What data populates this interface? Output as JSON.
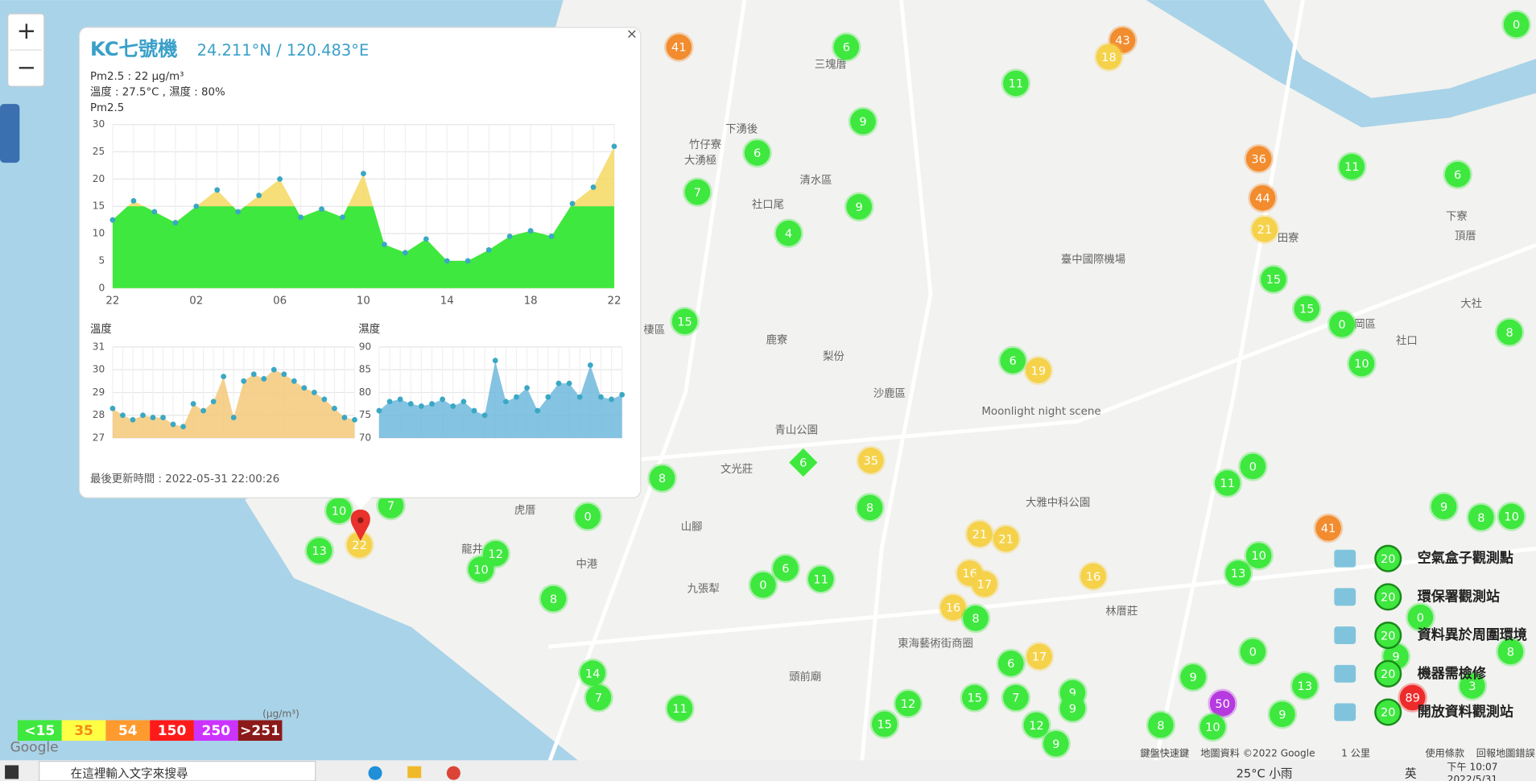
{
  "map": {
    "zoom_in": "+",
    "zoom_out": "−",
    "places": [
      "清水區",
      "沙鹿區",
      "棲區",
      "臺中國際機場",
      "神岡區",
      "龍井",
      "大雅中科公園",
      "Moonlight night scene",
      "鹿寮",
      "社口尾",
      "竹仔寮",
      "大湧極",
      "下湧後",
      "三塊厝",
      "田寮",
      "下寮",
      "頂厝",
      "文光莊",
      "山腳",
      "九張犁",
      "虎厝",
      "中港",
      "林厝莊",
      "大社",
      "社口",
      "頭前廟",
      "東海藝術街商圈",
      "梨份",
      "青山公園"
    ],
    "markers": [
      {
        "value": 41,
        "color": "#f28c2e"
      },
      {
        "value": 6,
        "color": "#3ee83e"
      },
      {
        "value": 43,
        "color": "#f28c2e"
      },
      {
        "value": 18,
        "color": "#f5d24a"
      },
      {
        "value": 11,
        "color": "#3ee83e"
      },
      {
        "value": 9,
        "color": "#3ee83e"
      },
      {
        "value": 6,
        "color": "#3ee83e"
      },
      {
        "value": 7,
        "color": "#3ee83e"
      },
      {
        "value": 9,
        "color": "#3ee83e"
      },
      {
        "value": 4,
        "color": "#3ee83e"
      },
      {
        "value": 36,
        "color": "#f28c2e"
      },
      {
        "value": 44,
        "color": "#f28c2e"
      },
      {
        "value": 21,
        "color": "#f5d24a"
      },
      {
        "value": 11,
        "color": "#3ee83e"
      },
      {
        "value": 6,
        "color": "#3ee83e"
      },
      {
        "value": 0,
        "color": "#3ee83e"
      },
      {
        "value": 15,
        "color": "#3ee83e"
      },
      {
        "value": 15,
        "color": "#3ee83e"
      },
      {
        "value": 0,
        "color": "#3ee83e"
      },
      {
        "value": 10,
        "color": "#3ee83e"
      },
      {
        "value": 8,
        "color": "#3ee83e"
      },
      {
        "value": 15,
        "color": "#3ee83e"
      },
      {
        "value": 6,
        "color": "#3ee83e"
      },
      {
        "value": 19,
        "color": "#f5d24a"
      },
      {
        "value": 35,
        "color": "#f5d24a"
      },
      {
        "value": 8,
        "color": "#3ee83e"
      },
      {
        "value": 0,
        "color": "#3ee83e"
      },
      {
        "value": 11,
        "color": "#3ee83e"
      },
      {
        "value": 41,
        "color": "#f28c2e"
      },
      {
        "value": 9,
        "color": "#3ee83e"
      },
      {
        "value": 8,
        "color": "#3ee83e"
      },
      {
        "value": 10,
        "color": "#3ee83e"
      },
      {
        "value": 10,
        "color": "#3ee83e"
      },
      {
        "value": 7,
        "color": "#3ee83e"
      },
      {
        "value": 13,
        "color": "#3ee83e"
      },
      {
        "value": 22,
        "color": "#f5d24a"
      },
      {
        "value": 0,
        "color": "#3ee83e"
      },
      {
        "value": 12,
        "color": "#3ee83e"
      },
      {
        "value": 10,
        "color": "#3ee83e"
      },
      {
        "value": 8,
        "color": "#3ee83e"
      },
      {
        "value": 8,
        "color": "#3ee83e"
      },
      {
        "value": 21,
        "color": "#f5d24a"
      },
      {
        "value": 21,
        "color": "#f5d24a"
      },
      {
        "value": 6,
        "color": "#3ee83e"
      },
      {
        "value": 11,
        "color": "#3ee83e"
      },
      {
        "value": 0,
        "color": "#3ee83e"
      },
      {
        "value": 16,
        "color": "#f5d24a"
      },
      {
        "value": 17,
        "color": "#f5d24a"
      },
      {
        "value": 16,
        "color": "#f5d24a"
      },
      {
        "value": 10,
        "color": "#3ee83e"
      },
      {
        "value": 13,
        "color": "#3ee83e"
      },
      {
        "value": 16,
        "color": "#f5d24a"
      },
      {
        "value": 8,
        "color": "#3ee83e"
      },
      {
        "value": 0,
        "color": "#3ee83e"
      },
      {
        "value": 0,
        "color": "#3ee83e"
      },
      {
        "value": 8,
        "color": "#3ee83e"
      },
      {
        "value": 17,
        "color": "#f5d24a"
      },
      {
        "value": 6,
        "color": "#3ee83e"
      },
      {
        "value": 14,
        "color": "#3ee83e"
      },
      {
        "value": 7,
        "color": "#3ee83e"
      },
      {
        "value": 11,
        "color": "#3ee83e"
      },
      {
        "value": 12,
        "color": "#3ee83e"
      },
      {
        "value": 15,
        "color": "#3ee83e"
      },
      {
        "value": 15,
        "color": "#3ee83e"
      },
      {
        "value": 7,
        "color": "#3ee83e"
      },
      {
        "value": 12,
        "color": "#3ee83e"
      },
      {
        "value": 9,
        "color": "#3ee83e"
      },
      {
        "value": 9,
        "color": "#3ee83e"
      },
      {
        "value": 9,
        "color": "#3ee83e"
      },
      {
        "value": 9,
        "color": "#3ee83e"
      },
      {
        "value": 50,
        "color": "#b63ae0"
      },
      {
        "value": 8,
        "color": "#3ee83e"
      },
      {
        "value": 10,
        "color": "#3ee83e"
      },
      {
        "value": 9,
        "color": "#3ee83e"
      },
      {
        "value": 13,
        "color": "#3ee83e"
      },
      {
        "value": 89,
        "color": "#ee2a2a"
      },
      {
        "value": 9,
        "color": "#3ee83e"
      },
      {
        "value": 3,
        "color": "#3ee83e"
      },
      {
        "value": 6,
        "color": "#3ee83e",
        "shape": "diamond"
      }
    ],
    "attribution": [
      "鍵盤快速鍵",
      "地圖資料 ©2022 Google",
      "1 公里",
      "使用條款",
      "回報地圖錯誤"
    ],
    "logo": "Google"
  },
  "popup": {
    "title": "KC七號機",
    "coords": "24.211°N / 120.483°E",
    "close": "×",
    "pm_line": "Pm2.5 : 22 μg/m³",
    "env_line": "溫度 : 27.5°C , 濕度 : 80%",
    "updated": "最後更新時間 : 2022-05-31 22:00:26"
  },
  "chart_data": [
    {
      "type": "area",
      "title": "Pm2.5",
      "categories": [
        "22",
        null,
        null,
        null,
        "02",
        null,
        null,
        null,
        "06",
        null,
        null,
        null,
        "10",
        null,
        null,
        null,
        "14",
        null,
        null,
        null,
        "18",
        null,
        null,
        null,
        "22"
      ],
      "values": [
        12.5,
        16,
        14,
        12,
        15,
        18,
        14,
        17,
        20,
        13,
        14.5,
        13,
        21,
        8,
        6.5,
        9,
        5,
        5,
        7,
        9.5,
        10.5,
        9.5,
        15.5,
        18.5,
        26
      ],
      "ylim": [
        0,
        30
      ],
      "yticks": [
        0,
        5,
        10,
        15,
        20,
        25,
        30
      ],
      "color": "#3aa8c4",
      "fill": "#f5d862",
      "grid": true
    },
    {
      "type": "area",
      "title": "溫度",
      "values": [
        28.3,
        28,
        27.8,
        28,
        27.9,
        27.9,
        27.6,
        27.5,
        28.5,
        28.2,
        28.6,
        29.7,
        27.9,
        29.5,
        29.8,
        29.6,
        30,
        29.8,
        29.5,
        29.2,
        29,
        28.7,
        28.3,
        27.9,
        27.8
      ],
      "ylim": [
        27,
        31
      ],
      "yticks": [
        27,
        28,
        29,
        30,
        31
      ],
      "color": "#3aa8c4",
      "fill": "#f5c97a",
      "grid": true
    },
    {
      "type": "area",
      "title": "濕度",
      "values": [
        76,
        78,
        78.5,
        77.5,
        77,
        77.5,
        78.5,
        77,
        78,
        76,
        75,
        87,
        78,
        79,
        81,
        76,
        79,
        82,
        82,
        79,
        86,
        79,
        78.5,
        79.5
      ],
      "ylim": [
        70,
        90
      ],
      "yticks": [
        70,
        75,
        80,
        85,
        90
      ],
      "color": "#3aa8c4",
      "fill": "#6fb8dc",
      "grid": true
    }
  ],
  "scale": {
    "unit": "(μg/m³)",
    "levels": [
      {
        "label": "<15",
        "color": "#3ee83e",
        "text": "#fff"
      },
      {
        "label": "35",
        "color": "#ffff44",
        "text": "#f08a1a"
      },
      {
        "label": "54",
        "color": "#ff9a2e",
        "text": "#fff"
      },
      {
        "label": "150",
        "color": "#ff1a1a",
        "text": "#fff"
      },
      {
        "label": "250",
        "color": "#cc33ff",
        "text": "#fff"
      },
      {
        "label": ">251",
        "color": "#8b1a1a",
        "text": "#fff"
      }
    ]
  },
  "legend": {
    "items": [
      {
        "badge": "20",
        "label": "空氣盒子觀測點"
      },
      {
        "badge": "20",
        "label": "環保署觀測站"
      },
      {
        "badge": "20",
        "label": "資料異於周圍環境"
      },
      {
        "badge": "20",
        "label": "機器需檢修"
      },
      {
        "badge": "20",
        "label": "開放資料觀測站"
      }
    ]
  },
  "taskbar": {
    "search": "在這裡輸入文字來搜尋",
    "weather": "25°C 小雨",
    "ime": "英",
    "time": "下午 10:07",
    "date": "2022/5/31"
  }
}
